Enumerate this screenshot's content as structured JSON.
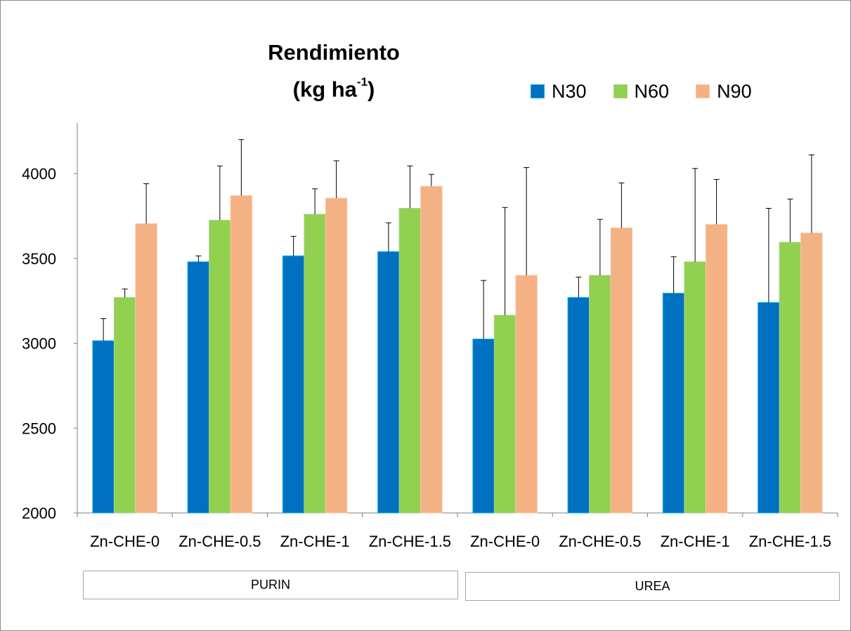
{
  "title": {
    "line1": "Rendimiento",
    "line2_prefix": "(kg ha",
    "line2_sup": "-1",
    "line2_suffix": ")"
  },
  "legend": [
    {
      "name": "N30",
      "color": "#0070c0"
    },
    {
      "name": "N60",
      "color": "#92d050"
    },
    {
      "name": "N90",
      "color": "#f4b183"
    }
  ],
  "groups": [
    {
      "label": "PURIN"
    },
    {
      "label": "UREA"
    }
  ],
  "chart_data": {
    "type": "bar",
    "title": "Rendimiento (kg ha-1)",
    "categories": [
      "Zn-CHE-0",
      "Zn-CHE-0.5",
      "Zn-CHE-1",
      "Zn-CHE-1.5",
      "Zn-CHE-0",
      "Zn-CHE-0.5",
      "Zn-CHE-1",
      "Zn-CHE-1.5"
    ],
    "category_groups": [
      "PURIN",
      "PURIN",
      "PURIN",
      "PURIN",
      "UREA",
      "UREA",
      "UREA",
      "UREA"
    ],
    "series": [
      {
        "name": "N30",
        "color": "#0070c0",
        "values": [
          3015,
          3480,
          3515,
          3540,
          3025,
          3270,
          3295,
          3240
        ],
        "error": [
          130,
          35,
          115,
          170,
          345,
          120,
          215,
          555
        ]
      },
      {
        "name": "N60",
        "color": "#92d050",
        "values": [
          3270,
          3725,
          3760,
          3795,
          3165,
          3400,
          3480,
          3595
        ],
        "error": [
          50,
          320,
          150,
          250,
          635,
          330,
          550,
          255
        ]
      },
      {
        "name": "N90",
        "color": "#f4b183",
        "values": [
          3705,
          3870,
          3855,
          3925,
          3400,
          3680,
          3700,
          3650
        ],
        "error": [
          235,
          330,
          220,
          70,
          635,
          265,
          265,
          460
        ]
      }
    ],
    "ylim": [
      2000,
      4300
    ],
    "yticks": [
      2000,
      2500,
      3000,
      3500,
      4000
    ],
    "grid": false,
    "legend_position": "top-right",
    "xlabel": "",
    "ylabel": ""
  }
}
